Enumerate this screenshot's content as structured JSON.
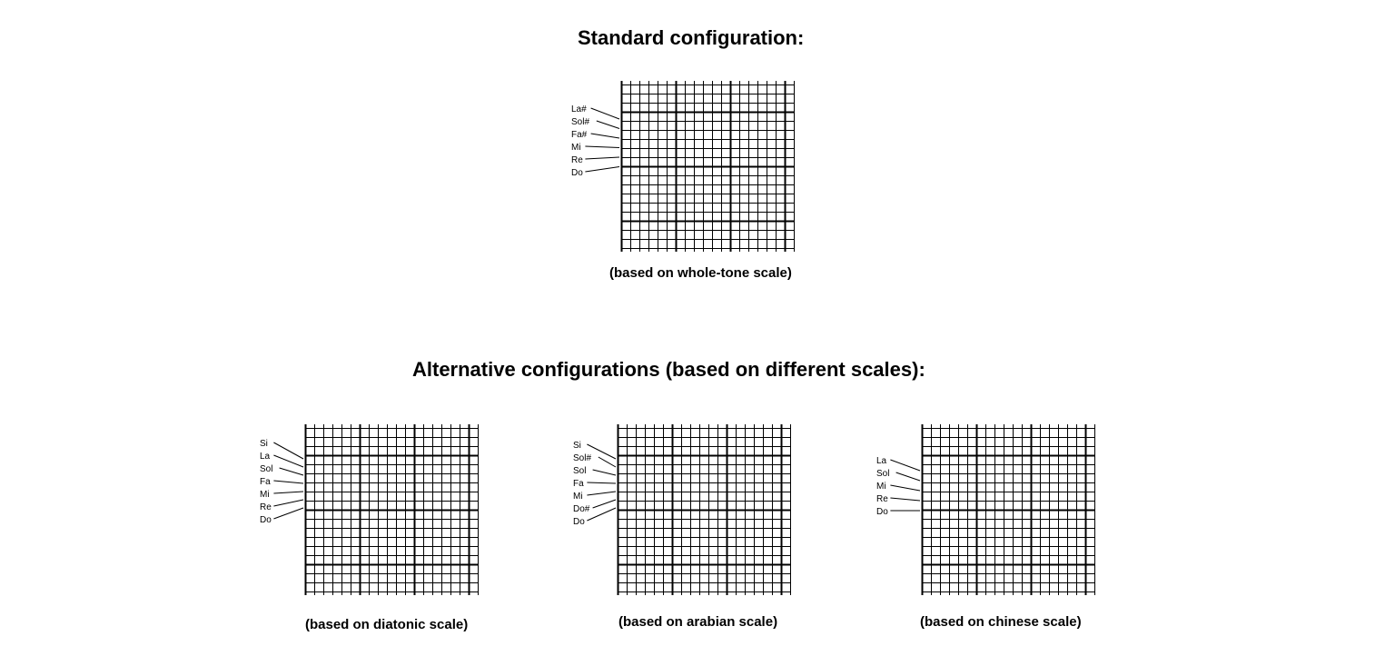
{
  "standard": {
    "title": "Standard configuration:",
    "diagram": {
      "caption": "(based on whole-tone scale)",
      "notes": [
        "La#",
        "Sol#",
        "Fa#",
        "Mi",
        "Re",
        "Do"
      ]
    }
  },
  "alternatives": {
    "title": "Alternative configurations (based on different scales):",
    "diagrams": [
      {
        "caption": "(based on diatonic scale)",
        "notes": [
          "Si",
          "La",
          "Sol",
          "Fa",
          "Mi",
          "Re",
          "Do"
        ]
      },
      {
        "caption": "(based on arabian scale)",
        "notes": [
          "Si",
          "Sol#",
          "Sol",
          "Fa",
          "Mi",
          "Do#",
          "Do"
        ]
      },
      {
        "caption": "(based on chinese scale)",
        "notes": [
          "La",
          "Sol",
          "Mi",
          "Re",
          "Do"
        ]
      }
    ]
  }
}
